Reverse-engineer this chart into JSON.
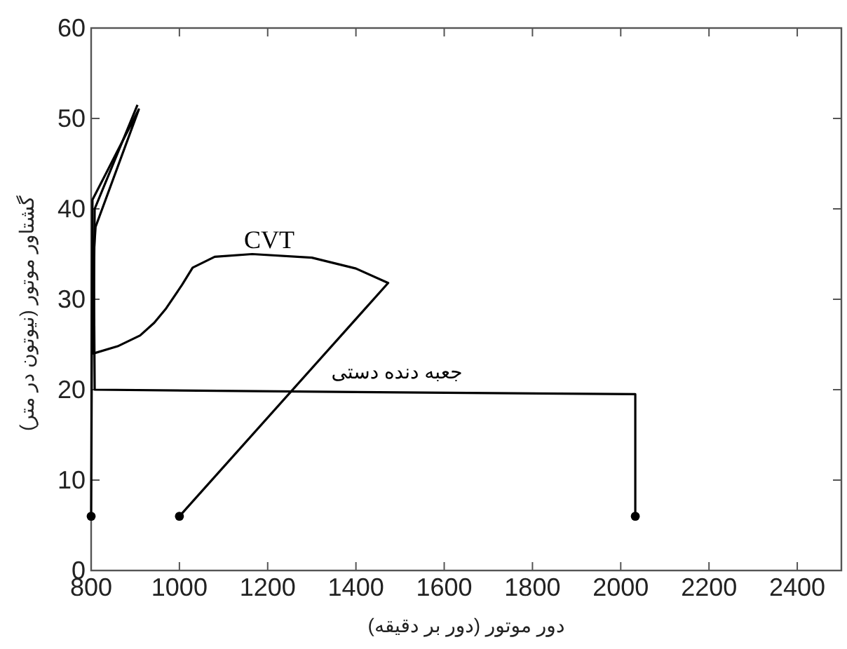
{
  "chart_data": {
    "type": "line",
    "xlabel": "دور موتور (دور بر دقیقه)",
    "ylabel": "گشتاور موتور (نیوتون در متر)",
    "xlim": [
      800,
      2500
    ],
    "xticks": [
      800,
      1000,
      1200,
      1400,
      1600,
      1800,
      2000,
      2200,
      2400
    ],
    "ylim": [
      0,
      60
    ],
    "yticks": [
      0,
      10,
      20,
      30,
      40,
      50,
      60
    ],
    "grid": false,
    "line_style": "solid",
    "marker": "none",
    "series": [
      {
        "name": "CVT",
        "color": "#000000",
        "x": [
          1000,
          1473,
          1400,
          1300,
          1165,
          1080,
          1030,
          1006,
          970,
          943,
          911,
          860,
          805,
          808,
          905
        ],
        "values": [
          6,
          31.8,
          33.4,
          34.6,
          35,
          34.7,
          33.5,
          31.6,
          29,
          27.4,
          26,
          24.8,
          24,
          40,
          51.5
        ]
      },
      {
        "name": "جعبه دنده دستی",
        "color": "#000000",
        "x": [
          800,
          803,
          908,
          810,
          806,
          808,
          1500,
          2033,
          2033
        ],
        "values": [
          6,
          41,
          51,
          38,
          35,
          20,
          19.7,
          19.5,
          6
        ]
      },
      {
        "type": "scatter",
        "marker": "circle",
        "color": "#000000",
        "x": [
          800,
          1000,
          2033
        ],
        "values": [
          6,
          6,
          6
        ]
      }
    ]
  }
}
